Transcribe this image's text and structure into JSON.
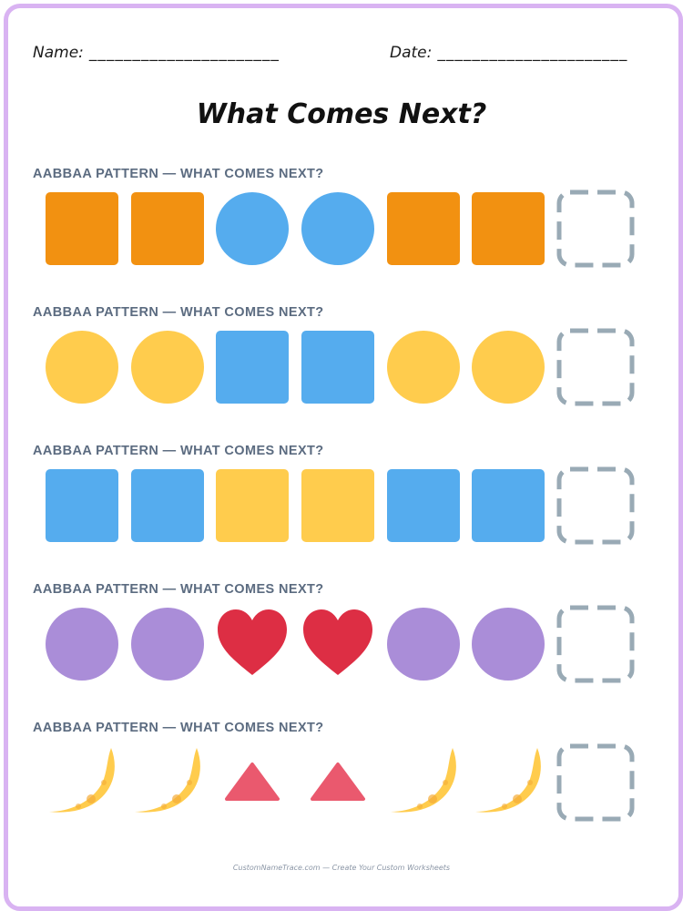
{
  "header": {
    "name_label": "Name:",
    "date_label": "Date:",
    "name_line": "______________________",
    "date_line": "______________________"
  },
  "title": "What Comes Next?",
  "rows": [
    {
      "label": "AABBAA PATTERN — WHAT COMES NEXT?",
      "shapes": [
        "square-orange",
        "square-orange",
        "circle-blue",
        "circle-blue",
        "square-orange",
        "square-orange"
      ]
    },
    {
      "label": "AABBAA PATTERN — WHAT COMES NEXT?",
      "shapes": [
        "circle-yellow",
        "circle-yellow",
        "square-blue",
        "square-blue",
        "circle-yellow",
        "circle-yellow"
      ]
    },
    {
      "label": "AABBAA PATTERN — WHAT COMES NEXT?",
      "shapes": [
        "square-blue",
        "square-blue",
        "square-yellow",
        "square-yellow",
        "square-blue",
        "square-blue"
      ]
    },
    {
      "label": "AABBAA PATTERN — WHAT COMES NEXT?",
      "shapes": [
        "circle-purple",
        "circle-purple",
        "heart-red",
        "heart-red",
        "circle-purple",
        "circle-purple"
      ]
    },
    {
      "label": "AABBAA PATTERN — WHAT COMES NEXT?",
      "shapes": [
        "moon-yellow",
        "moon-yellow",
        "triangle-red",
        "triangle-red",
        "moon-yellow",
        "moon-yellow"
      ]
    }
  ],
  "colors": {
    "orange": "#f29111",
    "blue": "#55acee",
    "yellow": "#ffcc4d",
    "purple": "#aa8dd8",
    "red": "#dd2e44",
    "pink_red": "#ea596e",
    "dash": "#99aab5",
    "border": "#d9b3f2"
  },
  "footer": "CustomNameTrace.com — Create Your Custom Worksheets"
}
